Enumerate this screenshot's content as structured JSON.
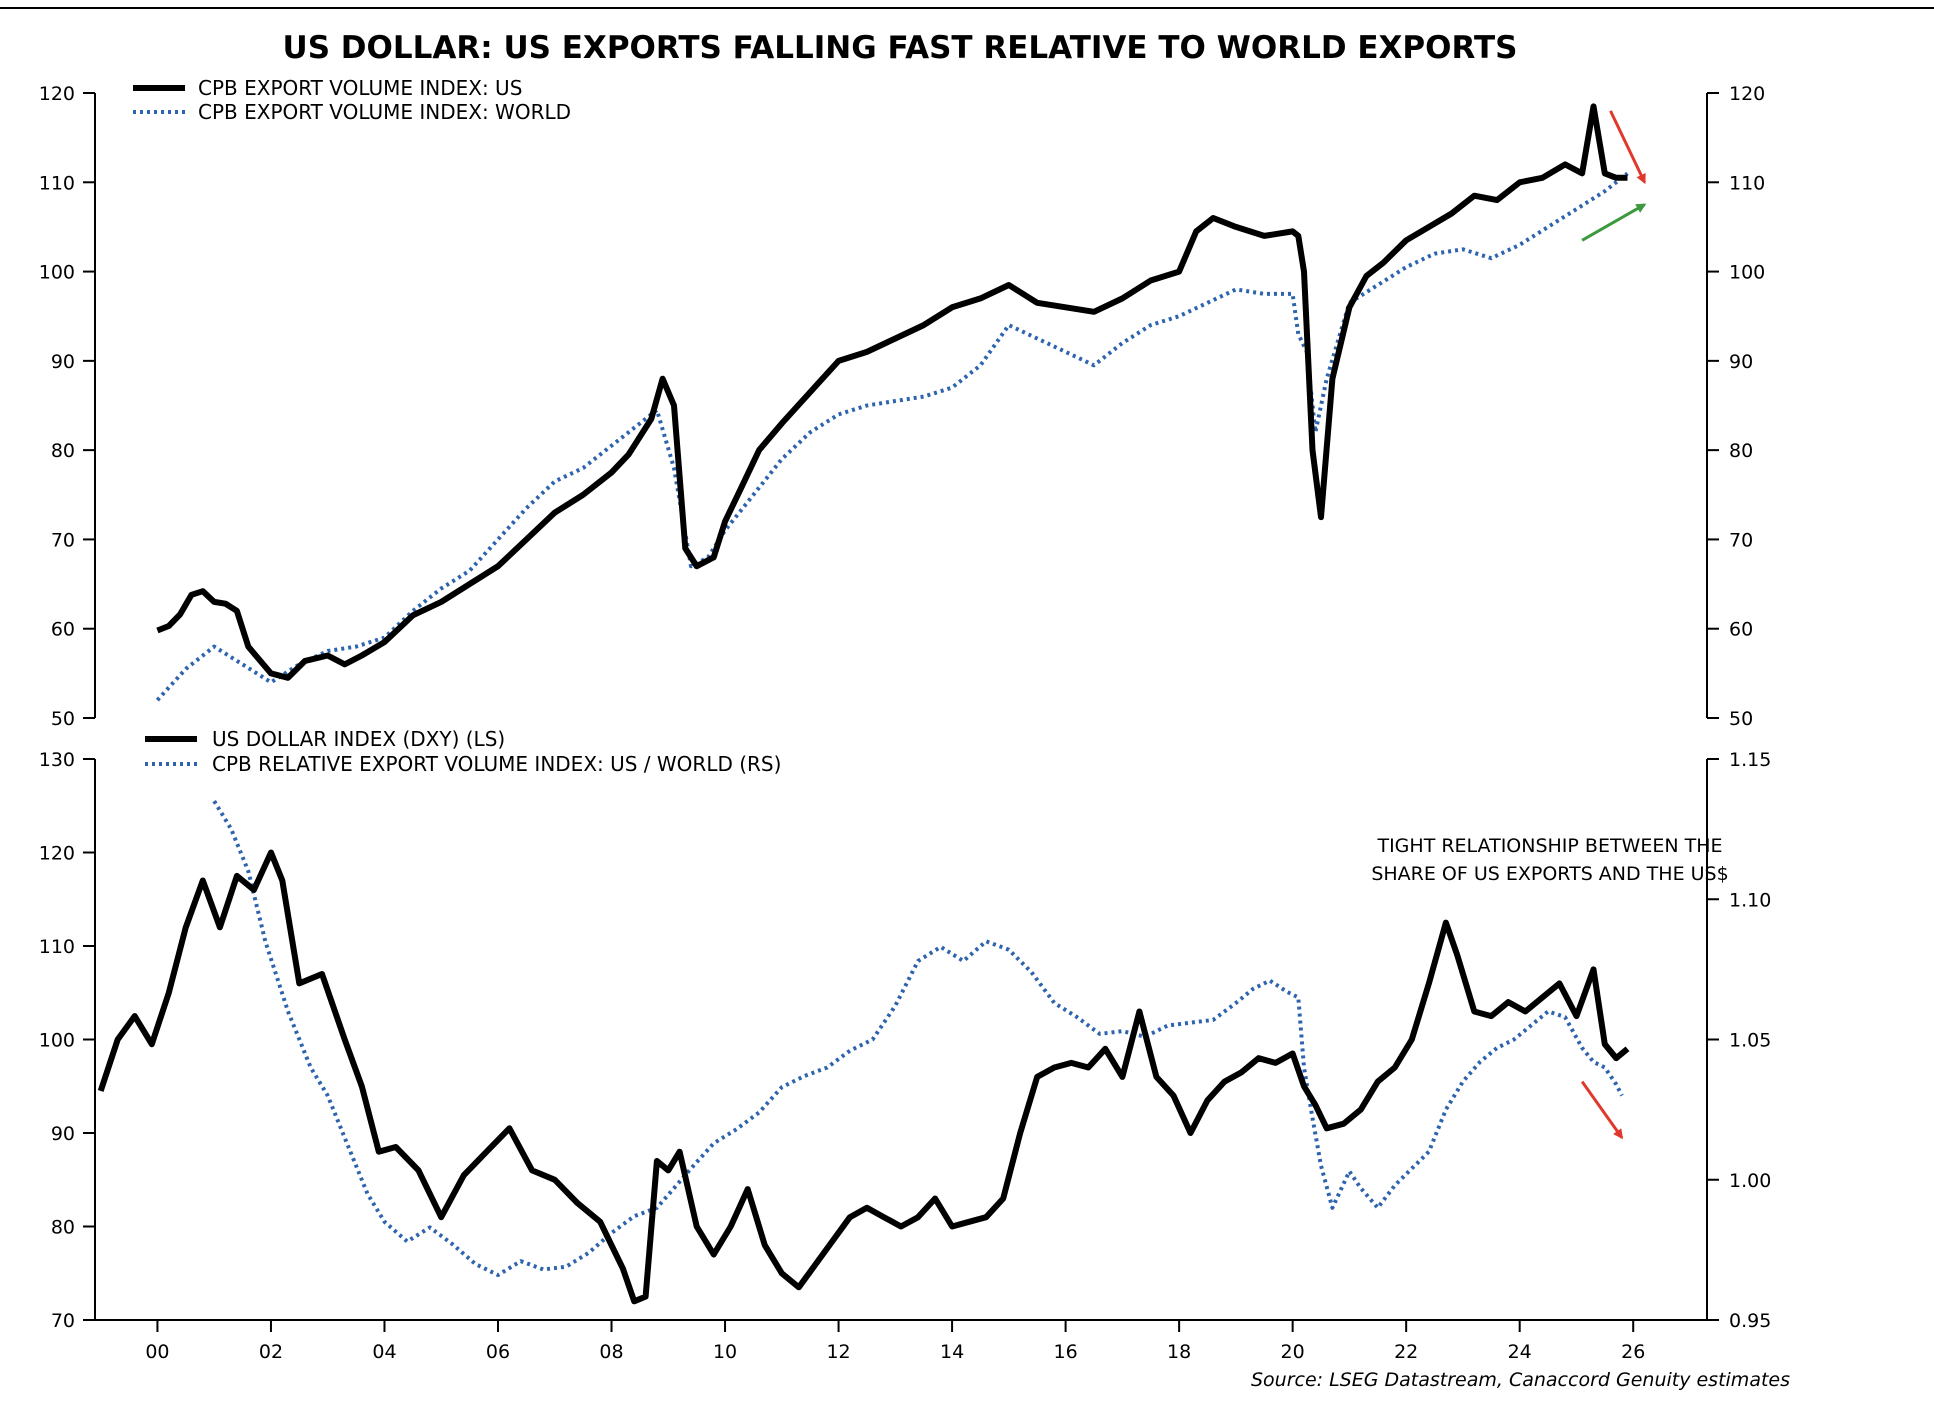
{
  "colors": {
    "us_line": "#000000",
    "world_line": "#2e64ad",
    "arrow_red": "#e0392b",
    "arrow_green": "#3c9a3c",
    "frame": "#000000"
  },
  "chart_data": [
    {
      "type": "line",
      "title": "US DOLLAR: US EXPORTS FALLING FAST RELATIVE TO  WORLD EXPORTS",
      "xlim": [
        1998.9,
        2027.3
      ],
      "ylim": [
        50,
        120
      ],
      "y2lim": [
        50,
        120
      ],
      "yticks": [
        50,
        60,
        70,
        80,
        90,
        100,
        110,
        120
      ],
      "y2ticks": [
        50,
        60,
        70,
        80,
        90,
        100,
        110,
        120
      ],
      "legend": [
        "CPB EXPORT VOLUME INDEX: US",
        "CPB EXPORT VOLUME INDEX: WORLD"
      ],
      "series": [
        {
          "name": "CPB EXPORT VOLUME INDEX: US",
          "style": "solid",
          "x": [
            2000.0,
            2000.2,
            2000.4,
            2000.6,
            2000.8,
            2001.0,
            2001.2,
            2001.4,
            2001.6,
            2001.8,
            2002.0,
            2002.3,
            2002.6,
            2003.0,
            2003.3,
            2003.6,
            2004.0,
            2004.5,
            2005.0,
            2005.5,
            2006.0,
            2006.5,
            2007.0,
            2007.5,
            2008.0,
            2008.3,
            2008.5,
            2008.7,
            2008.9,
            2009.1,
            2009.3,
            2009.5,
            2009.8,
            2010.0,
            2010.3,
            2010.6,
            2011.0,
            2011.5,
            2012.0,
            2012.5,
            2013.0,
            2013.5,
            2014.0,
            2014.5,
            2015.0,
            2015.5,
            2016.0,
            2016.5,
            2017.0,
            2017.5,
            2018.0,
            2018.3,
            2018.6,
            2019.0,
            2019.5,
            2020.0,
            2020.1,
            2020.2,
            2020.35,
            2020.5,
            2020.7,
            2021.0,
            2021.3,
            2021.6,
            2022.0,
            2022.4,
            2022.8,
            2023.2,
            2023.6,
            2024.0,
            2024.4,
            2024.8,
            2025.1,
            2025.3,
            2025.5,
            2025.7,
            2025.9
          ],
          "y": [
            59.8,
            60.3,
            61.6,
            63.8,
            64.2,
            63.0,
            62.8,
            62.0,
            58.0,
            56.5,
            55.0,
            54.5,
            56.4,
            57.0,
            56.0,
            57.0,
            58.5,
            61.5,
            63.0,
            65.0,
            67.0,
            70.0,
            73.0,
            75.0,
            77.5,
            79.5,
            81.5,
            83.5,
            88.0,
            85.0,
            69.0,
            67.0,
            68.0,
            72.0,
            76.0,
            80.0,
            83.0,
            86.5,
            90.0,
            91.0,
            92.5,
            94.0,
            96.0,
            97.0,
            98.5,
            96.5,
            96.0,
            95.5,
            97.0,
            99.0,
            100.0,
            104.5,
            106.0,
            105.0,
            104.0,
            104.5,
            104.0,
            100.0,
            80.0,
            72.5,
            88.0,
            96.0,
            99.5,
            101.0,
            103.5,
            105.0,
            106.5,
            108.5,
            108.0,
            110.0,
            110.5,
            112.0,
            111.0,
            118.5,
            111.0,
            110.5,
            110.5
          ]
        },
        {
          "name": "CPB EXPORT VOLUME INDEX: WORLD",
          "style": "dotted",
          "x": [
            2000.0,
            2000.5,
            2001.0,
            2001.5,
            2002.0,
            2002.5,
            2003.0,
            2003.5,
            2004.0,
            2004.5,
            2005.0,
            2005.5,
            2006.0,
            2006.5,
            2007.0,
            2007.5,
            2008.0,
            2008.5,
            2008.8,
            2009.1,
            2009.4,
            2009.7,
            2010.0,
            2010.5,
            2011.0,
            2011.5,
            2012.0,
            2012.5,
            2013.0,
            2013.5,
            2014.0,
            2014.5,
            2015.0,
            2015.5,
            2016.0,
            2016.5,
            2017.0,
            2017.5,
            2018.0,
            2018.5,
            2019.0,
            2019.5,
            2020.0,
            2020.1,
            2020.25,
            2020.4,
            2020.6,
            2021.0,
            2021.5,
            2022.0,
            2022.5,
            2023.0,
            2023.5,
            2024.0,
            2024.5,
            2025.0,
            2025.5,
            2025.9
          ],
          "y": [
            52.0,
            55.5,
            58.0,
            56.0,
            54.0,
            56.0,
            57.5,
            58.0,
            59.0,
            62.0,
            64.5,
            66.5,
            70.0,
            73.5,
            76.5,
            78.0,
            80.5,
            83.0,
            84.5,
            78.0,
            67.0,
            68.0,
            71.0,
            75.0,
            79.0,
            82.0,
            84.0,
            85.0,
            85.5,
            86.0,
            87.0,
            89.5,
            94.0,
            92.5,
            91.0,
            89.5,
            92.0,
            94.0,
            95.0,
            96.5,
            98.0,
            97.5,
            97.5,
            93.0,
            91.0,
            82.0,
            88.0,
            96.5,
            98.5,
            100.5,
            102.0,
            102.5,
            101.5,
            103.0,
            105.0,
            107.0,
            109.0,
            111.0
          ]
        }
      ],
      "annotations": [
        {
          "type": "arrow",
          "color": "red",
          "from": [
            2025.6,
            118.0
          ],
          "to": [
            2026.2,
            110.0
          ]
        },
        {
          "type": "arrow",
          "color": "green",
          "from": [
            2025.1,
            103.5
          ],
          "to": [
            2026.2,
            107.5
          ]
        }
      ]
    },
    {
      "type": "line",
      "xlim": [
        1998.9,
        2027.3
      ],
      "ylim": [
        70,
        130
      ],
      "y2lim": [
        0.95,
        1.15
      ],
      "yticks": [
        70,
        80,
        90,
        100,
        110,
        120,
        130
      ],
      "y2ticks": [
        "0.95",
        "1.00",
        "1.05",
        "1.10",
        "1.15"
      ],
      "xticks": [
        2000,
        2002,
        2004,
        2006,
        2008,
        2010,
        2012,
        2014,
        2016,
        2018,
        2020,
        2022,
        2024,
        2026
      ],
      "xticklabels": [
        "00",
        "02",
        "04",
        "06",
        "08",
        "10",
        "12",
        "14",
        "16",
        "18",
        "20",
        "22",
        "24",
        "26"
      ],
      "legend": [
        "US DOLLAR INDEX (DXY) (LS)",
        "CPB RELATIVE EXPORT VOLUME INDEX: US / WORLD (RS)"
      ],
      "annotation_text": [
        "TIGHT RELATIONSHIP BETWEEN THE",
        "SHARE OF US EXPORTS AND THE US$"
      ],
      "series": [
        {
          "name": "US DOLLAR INDEX (DXY) (LS)",
          "style": "solid",
          "axis": "left",
          "x": [
            1999.0,
            1999.3,
            1999.6,
            1999.9,
            2000.2,
            2000.5,
            2000.8,
            2001.1,
            2001.4,
            2001.7,
            2002.0,
            2002.2,
            2002.5,
            2002.9,
            2003.3,
            2003.6,
            2003.9,
            2004.2,
            2004.6,
            2005.0,
            2005.4,
            2005.8,
            2006.2,
            2006.6,
            2007.0,
            2007.4,
            2007.8,
            2008.0,
            2008.2,
            2008.4,
            2008.6,
            2008.8,
            2009.0,
            2009.2,
            2009.5,
            2009.8,
            2010.1,
            2010.4,
            2010.7,
            2011.0,
            2011.3,
            2011.6,
            2011.9,
            2012.2,
            2012.5,
            2012.8,
            2013.1,
            2013.4,
            2013.7,
            2014.0,
            2014.3,
            2014.6,
            2014.9,
            2015.2,
            2015.5,
            2015.8,
            2016.1,
            2016.4,
            2016.7,
            2017.0,
            2017.3,
            2017.6,
            2017.9,
            2018.2,
            2018.5,
            2018.8,
            2019.1,
            2019.4,
            2019.7,
            2020.0,
            2020.2,
            2020.4,
            2020.6,
            2020.9,
            2021.2,
            2021.5,
            2021.8,
            2022.1,
            2022.4,
            2022.7,
            2022.9,
            2023.2,
            2023.5,
            2023.8,
            2024.1,
            2024.4,
            2024.7,
            2025.0,
            2025.3,
            2025.5,
            2025.7,
            2025.9
          ],
          "y": [
            94.5,
            100.0,
            102.5,
            99.5,
            105.0,
            112.0,
            117.0,
            112.0,
            117.5,
            116.0,
            120.0,
            117.0,
            106.0,
            107.0,
            100.0,
            95.0,
            88.0,
            88.5,
            86.0,
            81.0,
            85.5,
            88.0,
            90.5,
            86.0,
            85.0,
            82.5,
            80.5,
            78.0,
            75.5,
            72.0,
            72.5,
            87.0,
            86.0,
            88.0,
            80.0,
            77.0,
            80.0,
            84.0,
            78.0,
            75.0,
            73.5,
            76.0,
            78.5,
            81.0,
            82.0,
            81.0,
            80.0,
            81.0,
            83.0,
            80.0,
            80.5,
            81.0,
            83.0,
            90.0,
            96.0,
            97.0,
            97.5,
            97.0,
            99.0,
            96.0,
            103.0,
            96.0,
            94.0,
            90.0,
            93.5,
            95.5,
            96.5,
            98.0,
            97.5,
            98.5,
            95.0,
            93.0,
            90.5,
            91.0,
            92.5,
            95.5,
            97.0,
            100.0,
            106.0,
            112.5,
            109.0,
            103.0,
            102.5,
            104.0,
            103.0,
            104.5,
            106.0,
            102.5,
            107.5,
            99.5,
            98.0,
            99.0
          ]
        },
        {
          "name": "CPB RELATIVE EXPORT VOLUME INDEX: US / WORLD (RS)",
          "style": "dotted",
          "axis": "right",
          "x": [
            2001.0,
            2001.3,
            2001.6,
            2001.9,
            2002.3,
            2002.7,
            2003.0,
            2003.3,
            2003.7,
            2004.0,
            2004.4,
            2004.8,
            2005.2,
            2005.6,
            2006.0,
            2006.4,
            2006.8,
            2007.2,
            2007.6,
            2008.0,
            2008.4,
            2008.8,
            2009.1,
            2009.4,
            2009.8,
            2010.2,
            2010.6,
            2011.0,
            2011.4,
            2011.8,
            2012.2,
            2012.6,
            2013.0,
            2013.4,
            2013.8,
            2014.2,
            2014.6,
            2015.0,
            2015.4,
            2015.8,
            2016.2,
            2016.6,
            2017.0,
            2017.4,
            2017.8,
            2018.2,
            2018.6,
            2019.0,
            2019.3,
            2019.6,
            2019.9,
            2020.1,
            2020.2,
            2020.35,
            2020.5,
            2020.7,
            2021.0,
            2021.2,
            2021.5,
            2021.8,
            2022.1,
            2022.4,
            2022.7,
            2023.0,
            2023.3,
            2023.6,
            2023.9,
            2024.2,
            2024.5,
            2024.8,
            2025.1,
            2025.3,
            2025.5,
            2025.7,
            2025.8
          ],
          "y": [
            1.135,
            1.125,
            1.11,
            1.085,
            1.06,
            1.04,
            1.03,
            1.015,
            0.995,
            0.985,
            0.978,
            0.983,
            0.977,
            0.97,
            0.966,
            0.971,
            0.968,
            0.969,
            0.974,
            0.981,
            0.987,
            0.99,
            0.997,
            1.004,
            1.013,
            1.018,
            1.024,
            1.033,
            1.037,
            1.04,
            1.046,
            1.05,
            1.062,
            1.078,
            1.083,
            1.078,
            1.085,
            1.082,
            1.074,
            1.063,
            1.058,
            1.052,
            1.053,
            1.051,
            1.055,
            1.056,
            1.057,
            1.063,
            1.068,
            1.071,
            1.067,
            1.065,
            1.04,
            1.022,
            1.005,
            0.99,
            1.003,
            0.997,
            0.99,
            0.998,
            1.004,
            1.01,
            1.025,
            1.035,
            1.042,
            1.047,
            1.05,
            1.055,
            1.06,
            1.058,
            1.047,
            1.042,
            1.04,
            1.034,
            1.03
          ]
        }
      ],
      "annotations": [
        {
          "type": "arrow",
          "color": "red",
          "from": [
            2025.1,
            1.035
          ],
          "to": [
            2025.8,
            1.015
          ]
        }
      ]
    }
  ],
  "source": "Source: LSEG Datastream, Canaccord Genuity estimates"
}
